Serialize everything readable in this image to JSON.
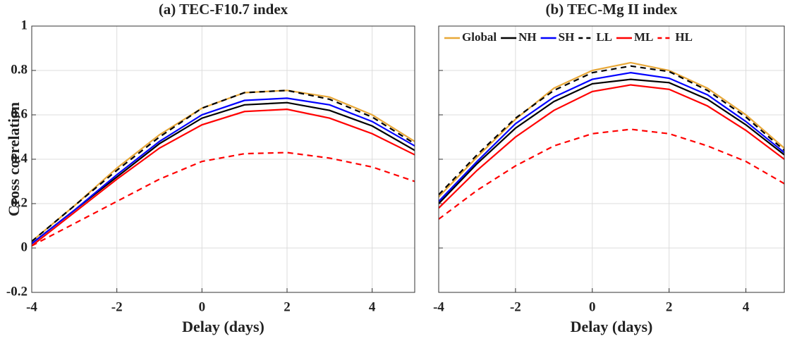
{
  "chart_data": [
    {
      "type": "line",
      "title": "(a) TEC-F10.7 index",
      "xlabel": "Delay (days)",
      "ylabel": "Cross correlation",
      "x": [
        -4,
        -3,
        -2,
        -1,
        0,
        1,
        2,
        3,
        4,
        5
      ],
      "xlim": [
        -4,
        5
      ],
      "xticks": [
        -4,
        -2,
        0,
        2,
        4
      ],
      "ylim": [
        -0.2,
        1
      ],
      "yticks": [
        -0.2,
        0,
        0.2,
        0.4,
        0.6,
        0.8,
        1
      ],
      "show_ytick_labels": true,
      "grid": true,
      "series": [
        {
          "name": "Global",
          "color": "#e8a838",
          "dashed": false,
          "values": [
            0.03,
            0.19,
            0.36,
            0.51,
            0.63,
            0.7,
            0.71,
            0.68,
            0.6,
            0.48
          ]
        },
        {
          "name": "NH",
          "color": "#000000",
          "dashed": false,
          "values": [
            0.02,
            0.17,
            0.32,
            0.47,
            0.585,
            0.645,
            0.655,
            0.62,
            0.55,
            0.44
          ]
        },
        {
          "name": "SH",
          "color": "#0000ff",
          "dashed": false,
          "values": [
            0.02,
            0.17,
            0.33,
            0.48,
            0.6,
            0.665,
            0.675,
            0.645,
            0.57,
            0.46
          ]
        },
        {
          "name": "LL",
          "color": "#000000",
          "dashed": true,
          "values": [
            0.03,
            0.19,
            0.35,
            0.5,
            0.63,
            0.7,
            0.71,
            0.67,
            0.59,
            0.47
          ]
        },
        {
          "name": "ML",
          "color": "#ff0000",
          "dashed": false,
          "values": [
            0.01,
            0.16,
            0.31,
            0.45,
            0.555,
            0.615,
            0.625,
            0.585,
            0.515,
            0.42
          ]
        },
        {
          "name": "HL",
          "color": "#ff0000",
          "dashed": true,
          "values": [
            0.01,
            0.11,
            0.21,
            0.31,
            0.39,
            0.425,
            0.43,
            0.405,
            0.365,
            0.3
          ]
        }
      ]
    },
    {
      "type": "line",
      "title": "(b) TEC-Mg II index",
      "xlabel": "Delay (days)",
      "x": [
        -4,
        -3,
        -2,
        -1,
        0,
        1,
        2,
        3,
        4,
        5
      ],
      "xlim": [
        -4,
        5
      ],
      "xticks": [
        -4,
        -2,
        0,
        2,
        4
      ],
      "ylim": [
        -0.2,
        1
      ],
      "yticks": [
        -0.2,
        0,
        0.2,
        0.4,
        0.6,
        0.8,
        1
      ],
      "show_ytick_labels": false,
      "grid": true,
      "legend": "top",
      "series": [
        {
          "name": "Global",
          "color": "#e8a838",
          "dashed": false,
          "values": [
            0.23,
            0.41,
            0.58,
            0.72,
            0.8,
            0.835,
            0.8,
            0.72,
            0.6,
            0.45
          ]
        },
        {
          "name": "NH",
          "color": "#000000",
          "dashed": false,
          "values": [
            0.2,
            0.38,
            0.54,
            0.66,
            0.74,
            0.76,
            0.745,
            0.67,
            0.555,
            0.42
          ]
        },
        {
          "name": "SH",
          "color": "#0000ff",
          "dashed": false,
          "values": [
            0.21,
            0.39,
            0.56,
            0.68,
            0.76,
            0.79,
            0.765,
            0.69,
            0.57,
            0.43
          ]
        },
        {
          "name": "LL",
          "color": "#000000",
          "dashed": true,
          "values": [
            0.24,
            0.42,
            0.585,
            0.71,
            0.79,
            0.82,
            0.795,
            0.71,
            0.59,
            0.44
          ]
        },
        {
          "name": "ML",
          "color": "#ff0000",
          "dashed": false,
          "values": [
            0.18,
            0.35,
            0.5,
            0.62,
            0.705,
            0.735,
            0.715,
            0.64,
            0.53,
            0.4
          ]
        },
        {
          "name": "HL",
          "color": "#ff0000",
          "dashed": true,
          "values": [
            0.13,
            0.26,
            0.37,
            0.46,
            0.515,
            0.535,
            0.515,
            0.46,
            0.39,
            0.29
          ]
        }
      ]
    }
  ]
}
